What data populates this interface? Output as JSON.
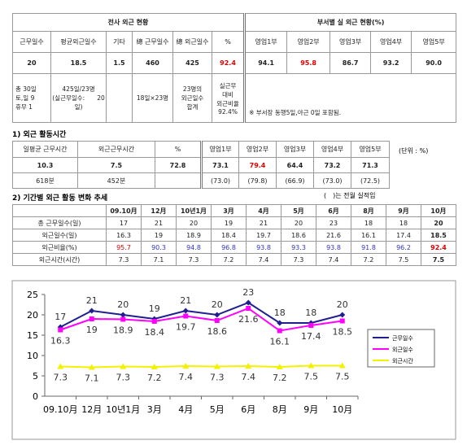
{
  "overview": {
    "title": "전사 외근 현황",
    "dept_title": "부서별 실 외근 현황(%)",
    "headers": [
      "근무일수",
      "평균외근일수",
      "기타",
      "總 근무일수",
      "總 외근일수",
      "%",
      "영업1부",
      "영업2부",
      "영업3부",
      "영업4부",
      "영업5부"
    ],
    "values": [
      "20",
      "18.5",
      "1.5",
      "460",
      "425",
      "92.4",
      "94.1",
      "95.8",
      "86.7",
      "93.2",
      "90.0"
    ],
    "days": [
      "총 30일",
      "토,일 9",
      "휴무 1"
    ],
    "avg": [
      "425일/23명",
      "(실근무일수:　　20",
      "일)"
    ],
    "total": "18일×23명",
    "sum": [
      "23명의",
      "외근일수",
      "합계"
    ],
    "ratio": [
      "실근무",
      "대비",
      "외근비율",
      "92.4%"
    ],
    "note": "※ 부서장 동행5일,야근 0일 포함됨."
  },
  "section1": {
    "title": "1) 외근 활동시간",
    "unit": "(단위 : %)",
    "note": "(　)는 전월 실적임",
    "headers": [
      "일평균 근무시간",
      "외근근무시간",
      "%",
      "영업1부",
      "영업2부",
      "영업3부",
      "영업4부",
      "영업5부"
    ],
    "rows": [
      [
        "10.3",
        "7.5",
        "72.8",
        "73.1",
        "79.4",
        "64.4",
        "73.2",
        "71.3"
      ],
      [
        "618분",
        "452분",
        null,
        "(73.0)",
        "(79.8)",
        "(66.9)",
        "(73.0)",
        "(72.5)"
      ]
    ]
  },
  "section2": {
    "title": "2) 기간별 외근 활동 변화 추세",
    "headers": [
      null,
      "09.10月",
      "12月",
      "10년1月",
      "3月",
      "4月",
      "5月",
      "6月",
      "8月",
      "9月",
      "10月"
    ],
    "rows": [
      [
        "총 근무일수(일)",
        "17",
        "21",
        "20",
        "19",
        "21",
        "20",
        "23",
        "18",
        "18",
        "20"
      ],
      [
        "외근일수(일)",
        "16.3",
        "19",
        "18.9",
        "18.4",
        "19.7",
        "18.6",
        "21.6",
        "16.1",
        "17.4",
        "18.5"
      ],
      [
        "외근비율(%)",
        "95.7",
        "90.3",
        "94.8",
        "96.8",
        "93.8",
        "93.3",
        "93.8",
        "91.8",
        "96.2",
        "92.4"
      ],
      [
        "외근시간(시간)",
        "7.3",
        "7.1",
        "7.3",
        "7.2",
        "7.4",
        "7.3",
        "7.4",
        "7.2",
        "7.5",
        "7.5"
      ]
    ]
  },
  "chart_data": {
    "type": "line",
    "categories": [
      "09.10月",
      "12月",
      "10년1月",
      "3月",
      "4月",
      "5月",
      "6月",
      "8月",
      "9月",
      "10月"
    ],
    "ylim": [
      0,
      25
    ],
    "yticks": [
      0,
      5,
      10,
      15,
      20,
      25
    ],
    "legend": "right",
    "series": [
      {
        "name": "근무일수",
        "color": "#1f1f8f",
        "values": [
          17,
          21,
          20,
          19,
          21,
          20,
          23,
          18,
          18,
          20
        ]
      },
      {
        "name": "외근일수",
        "color": "#ff00ff",
        "values": [
          16.3,
          19,
          18.9,
          18.4,
          19.7,
          18.6,
          21.6,
          16.1,
          17.4,
          18.5
        ]
      },
      {
        "name": "외근시간",
        "color": "#f2f200",
        "values": [
          7.3,
          7.1,
          7.3,
          7.2,
          7.4,
          7.3,
          7.4,
          7.2,
          7.5,
          7.5
        ]
      }
    ]
  }
}
